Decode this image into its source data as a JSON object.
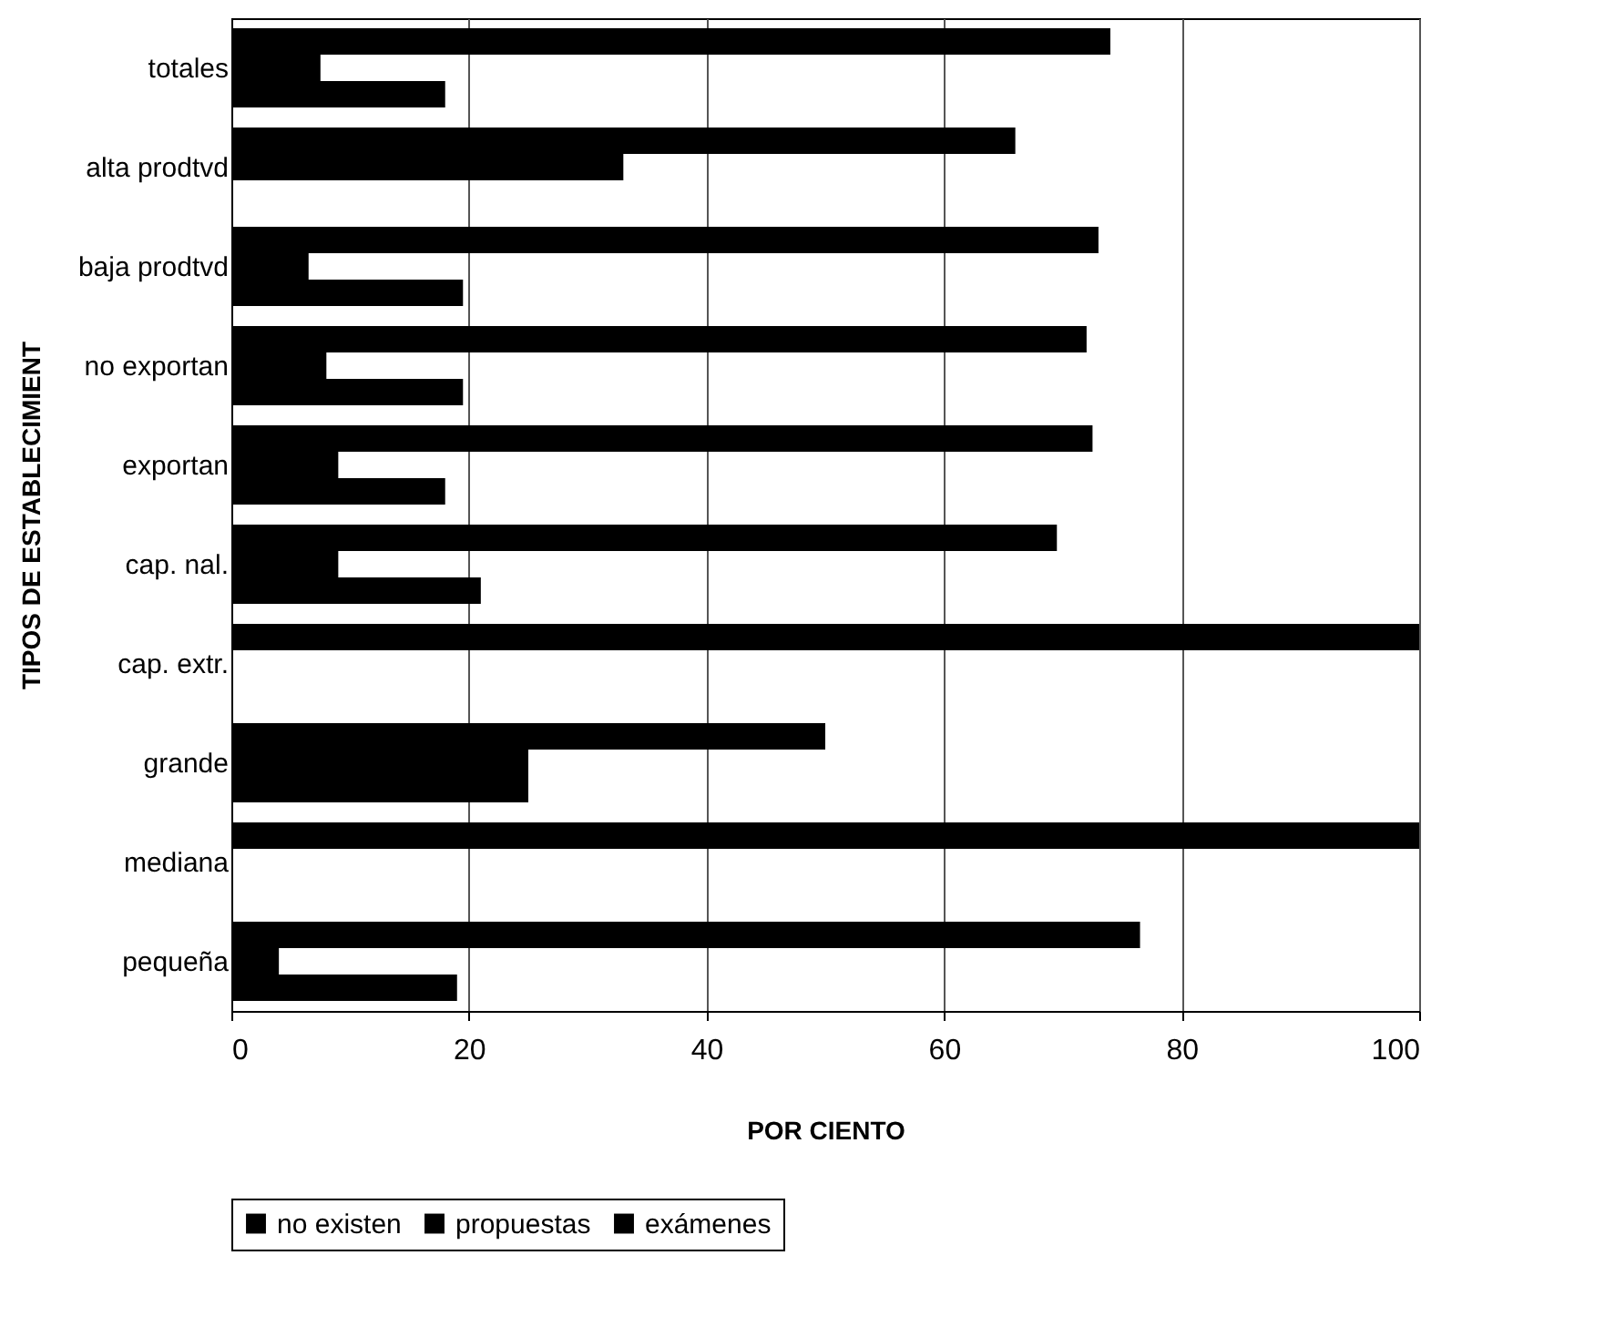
{
  "chart_data": {
    "type": "bar",
    "orientation": "horizontal",
    "xlabel": "POR CIENTO",
    "ylabel": "TIPOS DE ESTABLECIMIENT",
    "categories": [
      "totales",
      "alta prodtvd",
      "baja prodtvd",
      "no exportan",
      "exportan",
      "cap. nal.",
      "cap. extr.",
      "grande",
      "mediana",
      "pequeña"
    ],
    "series": [
      {
        "name": "no existen",
        "color": "#000000",
        "values": [
          74,
          66,
          73,
          72,
          72.5,
          69.5,
          100,
          50,
          100,
          76.5
        ]
      },
      {
        "name": "propuestas",
        "color": "#000000",
        "values": [
          7.5,
          33,
          6.5,
          8,
          9,
          9,
          0,
          25,
          0,
          4
        ]
      },
      {
        "name": "exámenes",
        "color": "#000000",
        "values": [
          18,
          0,
          19.5,
          19.5,
          18,
          21,
          0,
          25,
          0,
          19
        ]
      }
    ],
    "xlim": [
      0,
      100
    ],
    "xticks": [
      0,
      20,
      40,
      60,
      80,
      100
    ],
    "grid": "x",
    "legend": "bottom"
  }
}
